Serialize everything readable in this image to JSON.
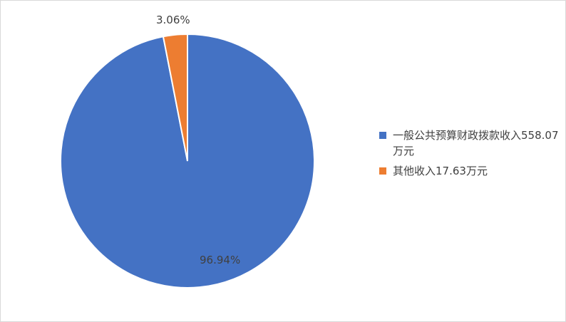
{
  "chart_data": {
    "type": "pie",
    "slices": [
      {
        "legend": "一般公共预算财政拨款收入558.07万元",
        "value": 558.07,
        "percent_label": "96.94%",
        "color": "#4472C4"
      },
      {
        "legend": "其他收入17.63万元",
        "value": 17.63,
        "percent_label": "3.06%",
        "color": "#ED7D31"
      }
    ],
    "legend_position": "right"
  }
}
